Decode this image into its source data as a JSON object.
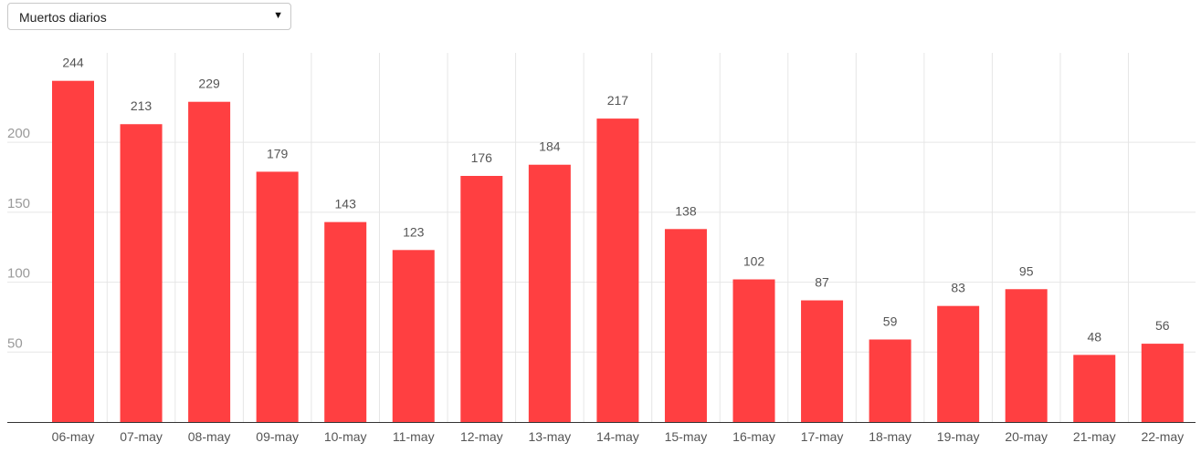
{
  "selector": {
    "value": "Muertos diarios",
    "arrow_icon": "caret-down-icon"
  },
  "chart_data": {
    "type": "bar",
    "categories": [
      "06-may",
      "07-may",
      "08-may",
      "09-may",
      "10-may",
      "11-may",
      "12-may",
      "13-may",
      "14-may",
      "15-may",
      "16-may",
      "17-may",
      "18-may",
      "19-may",
      "20-may",
      "21-may",
      "22-may"
    ],
    "values": [
      244,
      213,
      229,
      179,
      143,
      123,
      176,
      184,
      217,
      138,
      102,
      87,
      59,
      83,
      95,
      48,
      56
    ],
    "title": "",
    "xlabel": "",
    "ylabel": "",
    "yticks": [
      50,
      100,
      150,
      200
    ],
    "ylim": [
      0,
      264
    ],
    "grid": true,
    "data_labels": true,
    "bar_color": "#ff3f41",
    "grid_color": "#e6e6e6",
    "axis_color": "#333333"
  }
}
